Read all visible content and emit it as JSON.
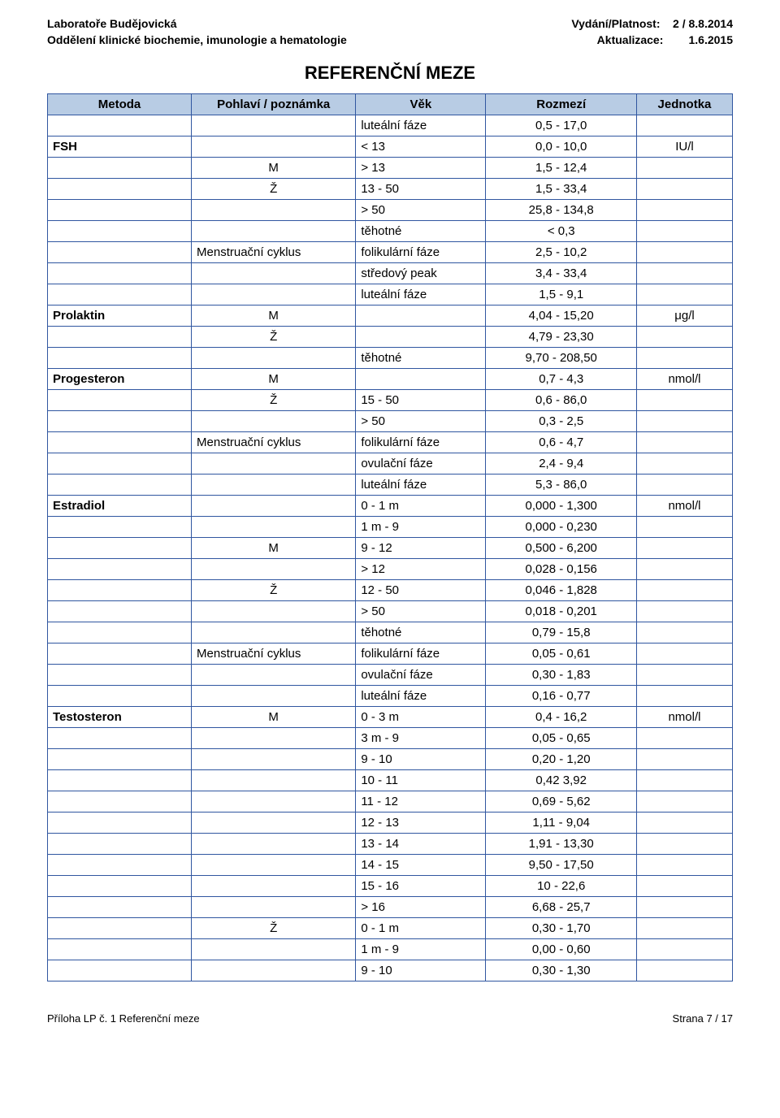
{
  "header": {
    "lab_line1": "Laboratoře Budějovická",
    "lab_line2": "Oddělení klinické biochemie, imunologie a hematologie",
    "vydani_label": "Vydání/Platnost:",
    "vydani_value": "2 / 8.8.2014",
    "aktualizace_label": "Aktualizace:",
    "aktualizace_value": "1.6.2015"
  },
  "title": "REFERENČNÍ MEZE",
  "columns": {
    "metoda": "Metoda",
    "pohlavi": "Pohlaví / poznámka",
    "vek": "Věk",
    "rozmezi": "Rozmezí",
    "jednotka": "Jednotka"
  },
  "rows": [
    {
      "metoda": "",
      "pohlavi": "",
      "pohlavi_center": false,
      "vek": "luteální fáze",
      "rozmezi": "0,5 - 17,0",
      "jednotka": ""
    },
    {
      "metoda": "FSH",
      "pohlavi": "",
      "pohlavi_center": false,
      "vek": "< 13",
      "rozmezi": "0,0 - 10,0",
      "jednotka": "IU/l"
    },
    {
      "metoda": "",
      "pohlavi": "M",
      "pohlavi_center": true,
      "vek": "> 13",
      "rozmezi": "1,5 - 12,4",
      "jednotka": ""
    },
    {
      "metoda": "",
      "pohlavi": "Ž",
      "pohlavi_center": true,
      "vek": "13 - 50",
      "rozmezi": "1,5 - 33,4",
      "jednotka": ""
    },
    {
      "metoda": "",
      "pohlavi": "",
      "pohlavi_center": false,
      "vek": "> 50",
      "rozmezi": "25,8 - 134,8",
      "jednotka": ""
    },
    {
      "metoda": "",
      "pohlavi": "",
      "pohlavi_center": false,
      "vek": "těhotné",
      "rozmezi": "< 0,3",
      "jednotka": ""
    },
    {
      "metoda": "",
      "pohlavi": "Menstruační cyklus",
      "pohlavi_center": false,
      "vek": "folikulární fáze",
      "rozmezi": "2,5 - 10,2",
      "jednotka": ""
    },
    {
      "metoda": "",
      "pohlavi": "",
      "pohlavi_center": false,
      "vek": "středový peak",
      "rozmezi": "3,4 - 33,4",
      "jednotka": ""
    },
    {
      "metoda": "",
      "pohlavi": "",
      "pohlavi_center": false,
      "vek": "luteální fáze",
      "rozmezi": "1,5 - 9,1",
      "jednotka": ""
    },
    {
      "metoda": "Prolaktin",
      "pohlavi": "M",
      "pohlavi_center": true,
      "vek": "",
      "rozmezi": "4,04 - 15,20",
      "jednotka": "μg/l"
    },
    {
      "metoda": "",
      "pohlavi": "Ž",
      "pohlavi_center": true,
      "vek": "",
      "rozmezi": "4,79 - 23,30",
      "jednotka": ""
    },
    {
      "metoda": "",
      "pohlavi": "",
      "pohlavi_center": false,
      "vek": "těhotné",
      "rozmezi": "9,70 - 208,50",
      "jednotka": ""
    },
    {
      "metoda": "Progesteron",
      "pohlavi": "M",
      "pohlavi_center": true,
      "vek": "",
      "rozmezi": "0,7 - 4,3",
      "jednotka": "nmol/l"
    },
    {
      "metoda": "",
      "pohlavi": "Ž",
      "pohlavi_center": true,
      "vek": "15 - 50",
      "rozmezi": "0,6 - 86,0",
      "jednotka": ""
    },
    {
      "metoda": "",
      "pohlavi": "",
      "pohlavi_center": false,
      "vek": "> 50",
      "rozmezi": "0,3 - 2,5",
      "jednotka": ""
    },
    {
      "metoda": "",
      "pohlavi": "Menstruační cyklus",
      "pohlavi_center": false,
      "vek": "folikulární fáze",
      "rozmezi": "0,6 - 4,7",
      "jednotka": ""
    },
    {
      "metoda": "",
      "pohlavi": "",
      "pohlavi_center": false,
      "vek": "ovulační fáze",
      "rozmezi": "2,4 - 9,4",
      "jednotka": ""
    },
    {
      "metoda": "",
      "pohlavi": "",
      "pohlavi_center": false,
      "vek": "luteální fáze",
      "rozmezi": "5,3 - 86,0",
      "jednotka": ""
    },
    {
      "metoda": "Estradiol",
      "pohlavi": "",
      "pohlavi_center": false,
      "vek": "0 - 1 m",
      "rozmezi": "0,000 - 1,300",
      "jednotka": "nmol/l"
    },
    {
      "metoda": "",
      "pohlavi": "",
      "pohlavi_center": false,
      "vek": "1 m - 9",
      "rozmezi": "0,000 - 0,230",
      "jednotka": ""
    },
    {
      "metoda": "",
      "pohlavi": "M",
      "pohlavi_center": true,
      "vek": "9 - 12",
      "rozmezi": "0,500 - 6,200",
      "jednotka": ""
    },
    {
      "metoda": "",
      "pohlavi": "",
      "pohlavi_center": false,
      "vek": "> 12",
      "rozmezi": "0,028 - 0,156",
      "jednotka": ""
    },
    {
      "metoda": "",
      "pohlavi": "Ž",
      "pohlavi_center": true,
      "vek": "12 - 50",
      "rozmezi": "0,046 - 1,828",
      "jednotka": ""
    },
    {
      "metoda": "",
      "pohlavi": "",
      "pohlavi_center": false,
      "vek": "> 50",
      "rozmezi": "0,018 - 0,201",
      "jednotka": ""
    },
    {
      "metoda": "",
      "pohlavi": "",
      "pohlavi_center": false,
      "vek": "těhotné",
      "rozmezi": "0,79 - 15,8",
      "jednotka": ""
    },
    {
      "metoda": "",
      "pohlavi": "Menstruační cyklus",
      "pohlavi_center": false,
      "vek": "folikulární fáze",
      "rozmezi": "0,05 - 0,61",
      "jednotka": ""
    },
    {
      "metoda": "",
      "pohlavi": "",
      "pohlavi_center": false,
      "vek": "ovulační fáze",
      "rozmezi": "0,30 - 1,83",
      "jednotka": ""
    },
    {
      "metoda": "",
      "pohlavi": "",
      "pohlavi_center": false,
      "vek": "luteální fáze",
      "rozmezi": "0,16 - 0,77",
      "jednotka": ""
    },
    {
      "metoda": "Testosteron",
      "pohlavi": "M",
      "pohlavi_center": true,
      "vek": "0 - 3 m",
      "rozmezi": "0,4 - 16,2",
      "jednotka": "nmol/l"
    },
    {
      "metoda": "",
      "pohlavi": "",
      "pohlavi_center": false,
      "vek": "3 m - 9",
      "rozmezi": "0,05 - 0,65",
      "jednotka": ""
    },
    {
      "metoda": "",
      "pohlavi": "",
      "pohlavi_center": false,
      "vek": "9 - 10",
      "rozmezi": "0,20 - 1,20",
      "jednotka": ""
    },
    {
      "metoda": "",
      "pohlavi": "",
      "pohlavi_center": false,
      "vek": "10 - 11",
      "rozmezi": "0,42 3,92",
      "jednotka": ""
    },
    {
      "metoda": "",
      "pohlavi": "",
      "pohlavi_center": false,
      "vek": "11 - 12",
      "rozmezi": "0,69 - 5,62",
      "jednotka": ""
    },
    {
      "metoda": "",
      "pohlavi": "",
      "pohlavi_center": false,
      "vek": "12 - 13",
      "rozmezi": "1,11 - 9,04",
      "jednotka": ""
    },
    {
      "metoda": "",
      "pohlavi": "",
      "pohlavi_center": false,
      "vek": "13 - 14",
      "rozmezi": "1,91 - 13,30",
      "jednotka": ""
    },
    {
      "metoda": "",
      "pohlavi": "",
      "pohlavi_center": false,
      "vek": "14 - 15",
      "rozmezi": "9,50 - 17,50",
      "jednotka": ""
    },
    {
      "metoda": "",
      "pohlavi": "",
      "pohlavi_center": false,
      "vek": "15 - 16",
      "rozmezi": "10 - 22,6",
      "jednotka": ""
    },
    {
      "metoda": "",
      "pohlavi": "",
      "pohlavi_center": false,
      "vek": "> 16",
      "rozmezi": "6,68 - 25,7",
      "jednotka": ""
    },
    {
      "metoda": "",
      "pohlavi": "Ž",
      "pohlavi_center": true,
      "vek": "0 - 1 m",
      "rozmezi": "0,30 - 1,70",
      "jednotka": ""
    },
    {
      "metoda": "",
      "pohlavi": "",
      "pohlavi_center": false,
      "vek": "1 m - 9",
      "rozmezi": "0,00 - 0,60",
      "jednotka": ""
    },
    {
      "metoda": "",
      "pohlavi": "",
      "pohlavi_center": false,
      "vek": "9 - 10",
      "rozmezi": "0,30 - 1,30",
      "jednotka": ""
    }
  ],
  "footer": {
    "left": "Příloha LP č. 1 Referenční meze",
    "right": "Strana 7 / 17"
  },
  "colors": {
    "header_bg": "#b8cce4",
    "border": "#3056a0",
    "text": "#000000",
    "page_bg": "#ffffff"
  }
}
